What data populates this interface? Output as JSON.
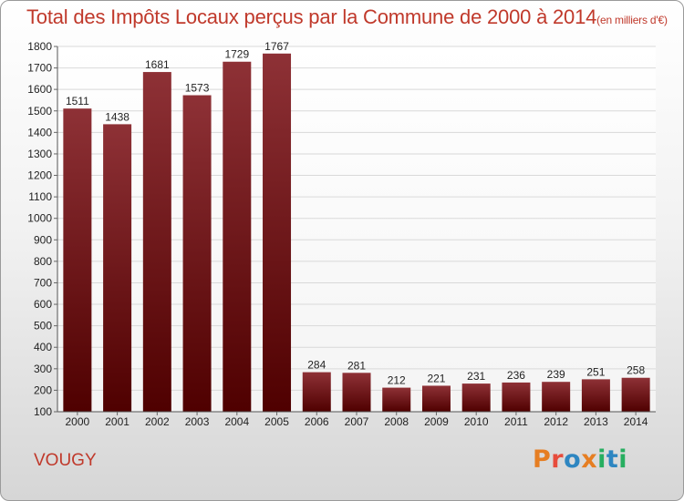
{
  "header": {
    "title": "Total des Impôts Locaux perçus par la Commune de 2000 à 2014",
    "unit": "(en milliers d'€)"
  },
  "footer": {
    "commune": "VOUGY",
    "brand_letters": [
      "P",
      "r",
      "o",
      "x",
      "i",
      "t",
      "i"
    ],
    "brand_colors": [
      "#e67e22",
      "#e74c3c",
      "#2e86c1",
      "#e67e22",
      "#27ae60",
      "#2e86c1",
      "#27ae60"
    ]
  },
  "colors": {
    "bar_top": "#8e3136",
    "bar_bottom": "#4f0000",
    "accent_text": "#c0392b",
    "grid": "#d9d9d9"
  },
  "chart_data": {
    "type": "bar",
    "categories": [
      "2000",
      "2001",
      "2002",
      "2003",
      "2004",
      "2005",
      "2006",
      "2007",
      "2008",
      "2009",
      "2010",
      "2011",
      "2012",
      "2013",
      "2014"
    ],
    "values": [
      1511,
      1438,
      1681,
      1573,
      1729,
      1767,
      284,
      281,
      212,
      221,
      231,
      236,
      239,
      251,
      258
    ],
    "ylim": [
      100,
      1800
    ],
    "yticks": [
      100,
      200,
      300,
      400,
      500,
      600,
      700,
      800,
      900,
      1000,
      1100,
      1200,
      1300,
      1400,
      1500,
      1600,
      1700,
      1800
    ],
    "grid": true,
    "data_labels": true
  }
}
